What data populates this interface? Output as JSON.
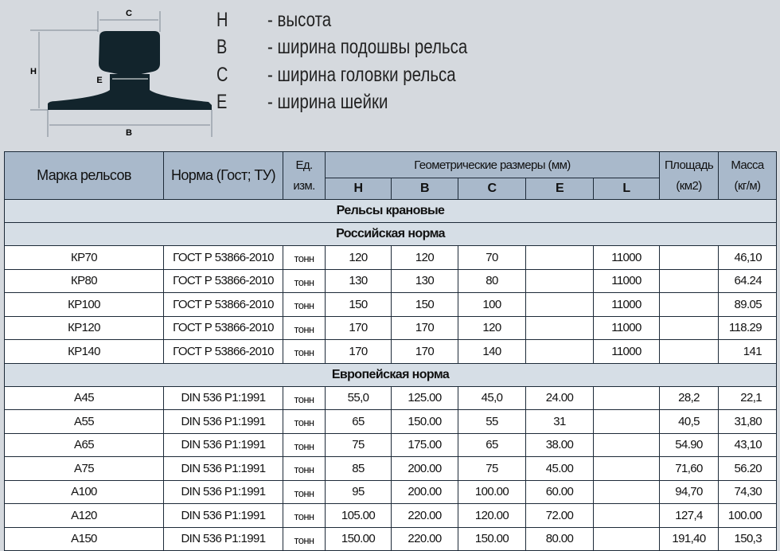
{
  "diagram": {
    "labels": {
      "C": "C",
      "H": "H",
      "E": "E",
      "B": "B"
    },
    "rail_color": "#12242c"
  },
  "legend": [
    {
      "symbol": "H",
      "text": "- высота"
    },
    {
      "symbol": "B",
      "text": "- ширина подошвы рельса"
    },
    {
      "symbol": "C",
      "text": "- ширина головки рельса"
    },
    {
      "symbol": "E",
      "text": "- ширина шейки"
    }
  ],
  "table": {
    "headers": {
      "brand": "Марка рельсов",
      "norm": "Норма (Гост; ТУ)",
      "unit": "Ед. изм.",
      "geometry": "Геометрические размеры (мм)",
      "area": "Площадь (км2)",
      "mass": "Масса (кг/м)",
      "dims": [
        "H",
        "B",
        "C",
        "E",
        "L"
      ]
    },
    "category": "Рельсы крановые",
    "groups": [
      {
        "title": "Российская норма",
        "rows": [
          [
            "КР70",
            "ГОСТ Р 53866-2010",
            "тонн",
            "120",
            "120",
            "70",
            "",
            "11000",
            "",
            "46,10"
          ],
          [
            "КР80",
            "ГОСТ Р 53866-2010",
            "тонн",
            "130",
            "130",
            "80",
            "",
            "11000",
            "",
            "64.24"
          ],
          [
            "КР100",
            "ГОСТ Р 53866-2010",
            "тонн",
            "150",
            "150",
            "100",
            "",
            "11000",
            "",
            "89.05"
          ],
          [
            "КР120",
            "ГОСТ Р 53866-2010",
            "тонн",
            "170",
            "170",
            "120",
            "",
            "11000",
            "",
            "118.29"
          ],
          [
            "КР140",
            "ГОСТ Р 53866-2010",
            "тонн",
            "170",
            "170",
            "140",
            "",
            "11000",
            "",
            "141"
          ]
        ]
      },
      {
        "title": "Европейская норма",
        "rows": [
          [
            "А45",
            "DIN 536 P1:1991",
            "тонн",
            "55,0",
            "125.00",
            "45,0",
            "24.00",
            "",
            "28,2",
            "22,1"
          ],
          [
            "А55",
            "DIN 536 P1:1991",
            "тонн",
            "65",
            "150.00",
            "55",
            "31",
            "",
            "40,5",
            "31,80"
          ],
          [
            "А65",
            "DIN 536 P1:1991",
            "тонн",
            "75",
            "175.00",
            "65",
            "38.00",
            "",
            "54.90",
            "43,10"
          ],
          [
            "А75",
            "DIN 536 P1:1991",
            "тонн",
            "85",
            "200.00",
            "75",
            "45.00",
            "",
            "71,60",
            "56.20"
          ],
          [
            "А100",
            "DIN 536 P1:1991",
            "тонн",
            "95",
            "200.00",
            "100.00",
            "60.00",
            "",
            "94,70",
            "74,30"
          ],
          [
            "А120",
            "DIN 536 P1:1991",
            "тонн",
            "105.00",
            "220.00",
            "120.00",
            "72.00",
            "",
            "127,4",
            "100.00"
          ],
          [
            "А150",
            "DIN 536 P1:1991",
            "тонн",
            "150.00",
            "220.00",
            "150.00",
            "80.00",
            "",
            "191,40",
            "150,3"
          ]
        ]
      }
    ]
  }
}
